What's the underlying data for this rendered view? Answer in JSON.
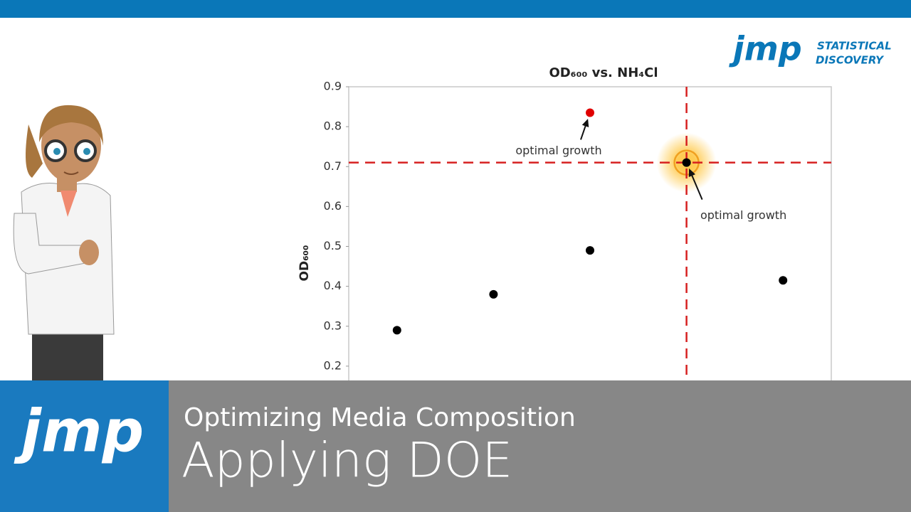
{
  "branding": {
    "logo": "jmp",
    "tagline_1": "STATISTICAL",
    "tagline_2": "DISCOVERY"
  },
  "chart_data": {
    "type": "scatter",
    "title": "OD₆₀₀ vs. NH₄Cl",
    "y_label": "OD₆₀₀",
    "categories": [
      null,
      null,
      null,
      null,
      null
    ],
    "series": [
      {
        "color": "#000000",
        "values": [
          0.29,
          0.38,
          0.49,
          0.71,
          0.415
        ]
      },
      {
        "color": "#e00000",
        "values": [
          null,
          null,
          0.835,
          null,
          null
        ]
      }
    ],
    "ylim": [
      0.1,
      0.9
    ],
    "yticks": [
      0.2,
      0.3,
      0.4,
      0.5,
      0.6,
      0.7,
      0.8,
      0.9
    ],
    "highlight": {
      "series": 0,
      "index": 3,
      "line_color": "#d62020"
    },
    "annotations": [
      {
        "text": "optimal growth",
        "series": 1,
        "index": 2
      },
      {
        "text": "optimal growth",
        "series": 0,
        "index": 3
      }
    ]
  },
  "banner": {
    "subtitle": "Optimizing Media Composition",
    "title": "Applying DOE"
  }
}
